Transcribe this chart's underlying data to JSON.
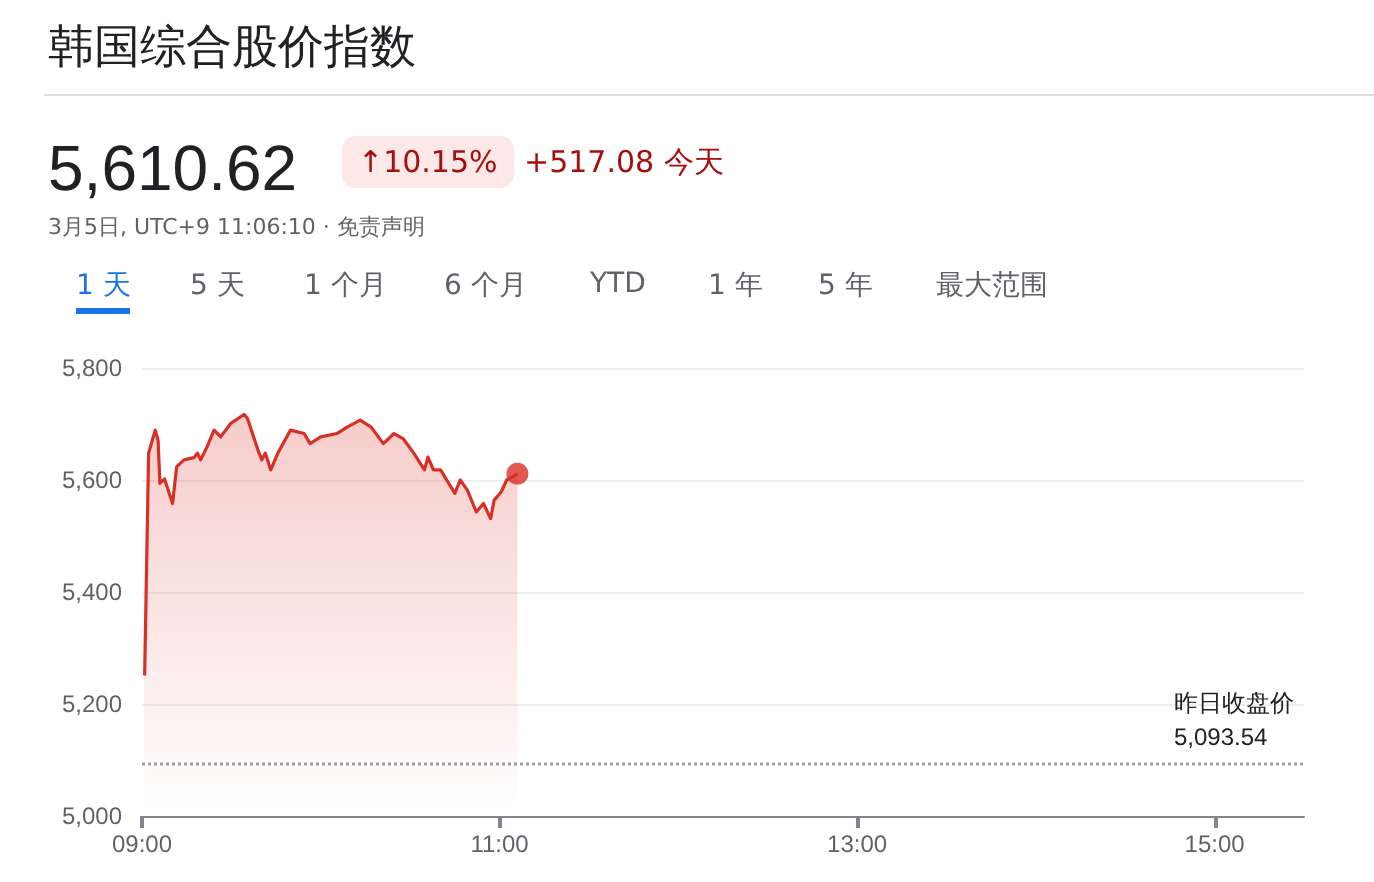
{
  "chart_data": {
    "type": "area",
    "title": "韩国综合股价指数",
    "subtitle": "3月5日, UTC+9 11:06:10 · 免责声明",
    "annotations": [
      "5,610.62",
      "↑10.15%",
      "+517.08 今天",
      "1 天",
      "5 天",
      "1 个月",
      "6 个月",
      "YTD",
      "1 年",
      "5 年",
      "最大范围"
    ],
    "series": [
      {
        "color": "#d93025",
        "x": [
          9.011,
          9.015,
          9.037,
          9.074,
          9.09,
          9.1,
          9.126,
          9.171,
          9.194,
          9.235,
          9.291,
          9.31,
          9.328,
          9.365,
          9.403,
          9.44,
          9.496,
          9.571,
          9.59,
          9.649,
          9.67,
          9.69,
          9.72,
          9.76,
          9.83,
          9.907,
          9.94,
          10.0,
          10.09,
          10.15,
          10.22,
          10.28,
          10.35,
          10.41,
          10.46,
          10.52,
          10.58,
          10.6,
          10.63,
          10.67,
          10.75,
          10.78,
          10.82,
          10.87,
          10.91,
          10.95,
          10.97,
          11.01,
          11.04,
          11.1
        ],
        "values": [
          5251,
          5254,
          5648,
          5689,
          5671,
          5594,
          5602,
          5558,
          5624,
          5636,
          5640,
          5648,
          5636,
          5660,
          5689,
          5677,
          5701,
          5717,
          5710,
          5653,
          5636,
          5648,
          5618,
          5648,
          5689,
          5683,
          5665,
          5677,
          5683,
          5695,
          5707,
          5695,
          5665,
          5683,
          5674,
          5648,
          5618,
          5641,
          5618,
          5618,
          5576,
          5600,
          5582,
          5543,
          5558,
          5531,
          5564,
          5579,
          5600,
          5611
        ]
      },
      {
        "type": "scatter",
        "marker": "circle",
        "color": "#d93025",
        "x": [
          11.1
        ],
        "values": [
          5611
        ]
      }
    ],
    "xlim": [
      9,
      15.5
    ],
    "xticks": [
      {
        "value": 9,
        "label": "09:00"
      },
      {
        "value": 11,
        "label": "11:00"
      },
      {
        "value": 13,
        "label": "13:00"
      },
      {
        "value": 15,
        "label": "15:00"
      }
    ],
    "ylim": [
      5000,
      5800
    ],
    "yticks": [
      {
        "value": 5000,
        "label": "5,000"
      },
      {
        "value": 5200,
        "label": "5,200"
      },
      {
        "value": 5400,
        "label": "5,400"
      },
      {
        "value": 5600,
        "label": "5,600"
      },
      {
        "value": 5800,
        "label": "5,800"
      }
    ],
    "ref_lines": [
      {
        "axis": "y",
        "value": 5093.54,
        "label": "昨日收盘价 5,093.54",
        "line_style": "dotted",
        "color": "#9aa0a6"
      }
    ],
    "grid": "y",
    "marker": "none",
    "line_style": "solid"
  }
}
